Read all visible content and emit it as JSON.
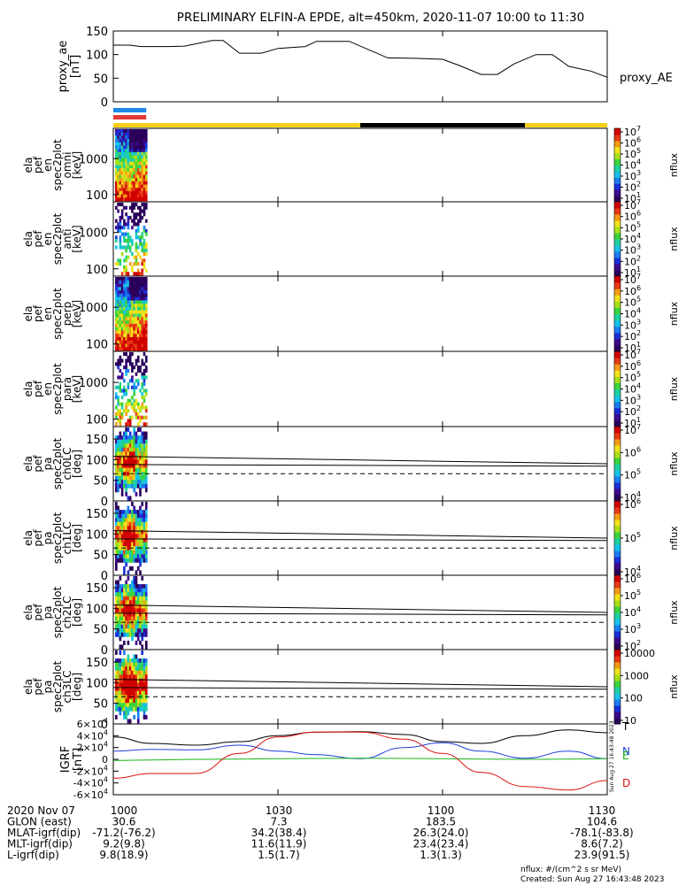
{
  "title": "PRELIMINARY ELFIN-A EPDE, alt=450km, 2020-11-07 10:00 to 11:30",
  "colors": {
    "sc_blue": "#1e88e5",
    "sc_red": "#e53935",
    "sunlit": "#f5d016",
    "shadow": "#000000",
    "trace": "#000000",
    "bx": "#1f3fd6",
    "by": "#18b418",
    "bz": "#dd1111",
    "bt": "#000000"
  },
  "time_axis": {
    "labels": [
      "1000",
      "1030",
      "1100",
      "1130"
    ],
    "hours": [
      10.0,
      10.5,
      11.0,
      11.5
    ]
  },
  "orbit_table": {
    "rows": [
      {
        "label": "2020 Nov 07",
        "values": [
          "1000",
          "1030",
          "1100",
          "1130"
        ]
      },
      {
        "label": "GLON (east)",
        "values": [
          "30.6",
          "7.3",
          "183.5",
          "104.6"
        ]
      },
      {
        "label": "MLAT-igrf(dip)",
        "values": [
          "-71.2(-76.2)",
          "34.2(38.4)",
          "26.3(24.0)",
          "-78.1(-83.8)"
        ]
      },
      {
        "label": "MLT-igrf(dip)",
        "values": [
          "9.2(9.8)",
          "11.6(11.9)",
          "23.4(23.4)",
          "8.6(7.2)"
        ]
      },
      {
        "label": "L-igrf(dip)",
        "values": [
          "9.8(18.9)",
          "1.5(1.7)",
          "1.3(1.3)",
          "23.9(91.5)"
        ]
      }
    ]
  },
  "footer": {
    "units": "nflux: #/(cm^2 s sr MeV)",
    "created": "Created: Sun Aug 27 16:43:48 2023",
    "side_stamp": "Sun Aug 27 16:43:48 2023"
  },
  "chart_data": [
    {
      "type": "line",
      "panel": "proxy_ae",
      "ylabel": "proxy_ae [nT]",
      "legend": "proxy_AE",
      "ylim": [
        0,
        150
      ],
      "yticks": [
        "0",
        "50",
        "100",
        "150"
      ],
      "x": [
        "10:00",
        "10:03",
        "10:05",
        "10:10",
        "10:13",
        "10:18",
        "10:20",
        "10:23",
        "10:27",
        "10:30",
        "10:35",
        "10:37",
        "10:43",
        "10:50",
        "10:55",
        "11:00",
        "11:03",
        "11:07",
        "11:10",
        "11:13",
        "11:17",
        "11:20",
        "11:23",
        "11:27",
        "11:30"
      ],
      "values": [
        120,
        120,
        117,
        117,
        118,
        130,
        130,
        103,
        103,
        113,
        117,
        128,
        128,
        93,
        92,
        90,
        77,
        58,
        58,
        80,
        100,
        100,
        75,
        65,
        52
      ]
    },
    {
      "type": "bar",
      "panel": "illumination",
      "segments": [
        {
          "start": "10:00",
          "end": "10:45",
          "state": "sunlit"
        },
        {
          "start": "10:45",
          "end": "11:15",
          "state": "shadow"
        },
        {
          "start": "11:15",
          "end": "11:30",
          "state": "sunlit"
        }
      ],
      "science_zone": {
        "start": "10:00",
        "end": "10:06"
      }
    },
    {
      "type": "heatmap",
      "panel": "ela_pef_en_spec2plot_omni",
      "ylabel": "ela pef en spec2plot omni [keV]",
      "yticks": [
        "100",
        "1000"
      ],
      "colorbar_label": "nflux",
      "colorbar_ticks": [
        "10^1",
        "10^2",
        "10^3",
        "10^4",
        "10^5",
        "10^6",
        "10^7"
      ],
      "data_interval": [
        "10:00",
        "10:06"
      ]
    },
    {
      "type": "heatmap",
      "panel": "ela_pef_en_spec2plot_anti",
      "ylabel": "ela pef en spec2plot anti [keV]",
      "yticks": [
        "100",
        "1000"
      ],
      "colorbar_label": "nflux",
      "colorbar_ticks": [
        "10^1",
        "10^2",
        "10^3",
        "10^4",
        "10^5",
        "10^6",
        "10^7"
      ],
      "data_interval": [
        "10:00",
        "10:06"
      ]
    },
    {
      "type": "heatmap",
      "panel": "ela_pef_en_spec2plot_perp",
      "ylabel": "ela pef en spec2plot perp [keV]",
      "yticks": [
        "100",
        "1000"
      ],
      "colorbar_label": "nflux",
      "colorbar_ticks": [
        "10^1",
        "10^2",
        "10^3",
        "10^4",
        "10^5",
        "10^6",
        "10^7"
      ],
      "data_interval": [
        "10:00",
        "10:06"
      ]
    },
    {
      "type": "heatmap",
      "panel": "ela_pef_en_spec2plot_para",
      "ylabel": "ela pef en spec2plot para [keV]",
      "yticks": [
        "100",
        "1000"
      ],
      "colorbar_label": "nflux",
      "colorbar_ticks": [
        "10^1",
        "10^2",
        "10^3",
        "10^4",
        "10^5",
        "10^6",
        "10^7"
      ],
      "data_interval": [
        "10:00",
        "10:06"
      ]
    },
    {
      "type": "heatmap",
      "panel": "ela_pef_pa_spec2plot_ch0LC",
      "ylabel": "ela pef pa spec2plot ch0LC [deg]",
      "yticks": [
        "0",
        "50",
        "100",
        "150"
      ],
      "ylim": [
        0,
        180
      ],
      "colorbar_label": "nflux",
      "colorbar_ticks": [
        "10^4",
        "10^5",
        "10^6",
        "10^7"
      ],
      "data_interval": [
        "10:00",
        "10:06"
      ],
      "loss_cone_deg": [
        108,
        90
      ],
      "anti_loss_cone_deg": 66
    },
    {
      "type": "heatmap",
      "panel": "ela_pef_pa_spec2plot_ch1LC",
      "ylabel": "ela pef pa spec2plot ch1LC [deg]",
      "yticks": [
        "0",
        "50",
        "100",
        "150"
      ],
      "ylim": [
        0,
        180
      ],
      "colorbar_label": "nflux",
      "colorbar_ticks": [
        "10^4",
        "10^5",
        "10^6"
      ],
      "data_interval": [
        "10:00",
        "10:06"
      ],
      "loss_cone_deg": [
        108,
        90
      ],
      "anti_loss_cone_deg": 66
    },
    {
      "type": "heatmap",
      "panel": "ela_pef_pa_spec2plot_ch2LC",
      "ylabel": "ela pef pa spec2plot ch2LC [deg]",
      "yticks": [
        "0",
        "50",
        "100",
        "150"
      ],
      "ylim": [
        0,
        180
      ],
      "colorbar_label": "nflux",
      "colorbar_ticks": [
        "10^2",
        "10^3",
        "10^4",
        "10^5",
        "10^6"
      ],
      "data_interval": [
        "10:00",
        "10:06"
      ],
      "loss_cone_deg": [
        108,
        90
      ],
      "anti_loss_cone_deg": 66
    },
    {
      "type": "heatmap",
      "panel": "ela_pef_pa_spec2plot_ch3LC",
      "ylabel": "ela pef pa spec2plot ch3LC [deg]",
      "yticks": [
        "0",
        "50",
        "100",
        "150"
      ],
      "ylim": [
        0,
        180
      ],
      "colorbar_label": "nflux",
      "colorbar_ticks": [
        "10",
        "100",
        "1000",
        "10000"
      ],
      "data_interval": [
        "10:00",
        "10:06"
      ],
      "loss_cone_deg": [
        108,
        90
      ],
      "anti_loss_cone_deg": 66
    },
    {
      "type": "line",
      "panel": "igrf",
      "ylabel": "IGRF [nT]",
      "ylim": [
        -60000,
        60000
      ],
      "yticks": [
        "-6×10^4",
        "-4×10^4",
        "-2×10^4",
        "0",
        "2×10^4",
        "4×10^4",
        "6×10^4"
      ],
      "legend": [
        "T",
        "N",
        "E",
        "D"
      ],
      "x": [
        "10:00",
        "10:07",
        "10:15",
        "10:23",
        "10:30",
        "10:37",
        "10:45",
        "10:53",
        "11:00",
        "11:07",
        "11:15",
        "11:23",
        "11:30"
      ],
      "series": [
        {
          "name": "T",
          "values": [
            38000,
            27000,
            24000,
            30000,
            40000,
            46000,
            47000,
            42000,
            30000,
            27000,
            40000,
            50000,
            45000
          ]
        },
        {
          "name": "N",
          "values": [
            14000,
            17000,
            16000,
            24000,
            14000,
            8000,
            1000,
            20000,
            28000,
            14000,
            2000,
            14000,
            1000
          ]
        },
        {
          "name": "E",
          "values": [
            -2000,
            -1000,
            0,
            500,
            1000,
            1500,
            2000,
            1500,
            1000,
            500,
            0,
            500,
            1000
          ]
        },
        {
          "name": "D",
          "values": [
            -32000,
            -24000,
            -24000,
            10000,
            38000,
            46000,
            46000,
            34000,
            10000,
            -22000,
            -46000,
            -52000,
            -36000
          ]
        }
      ]
    }
  ]
}
